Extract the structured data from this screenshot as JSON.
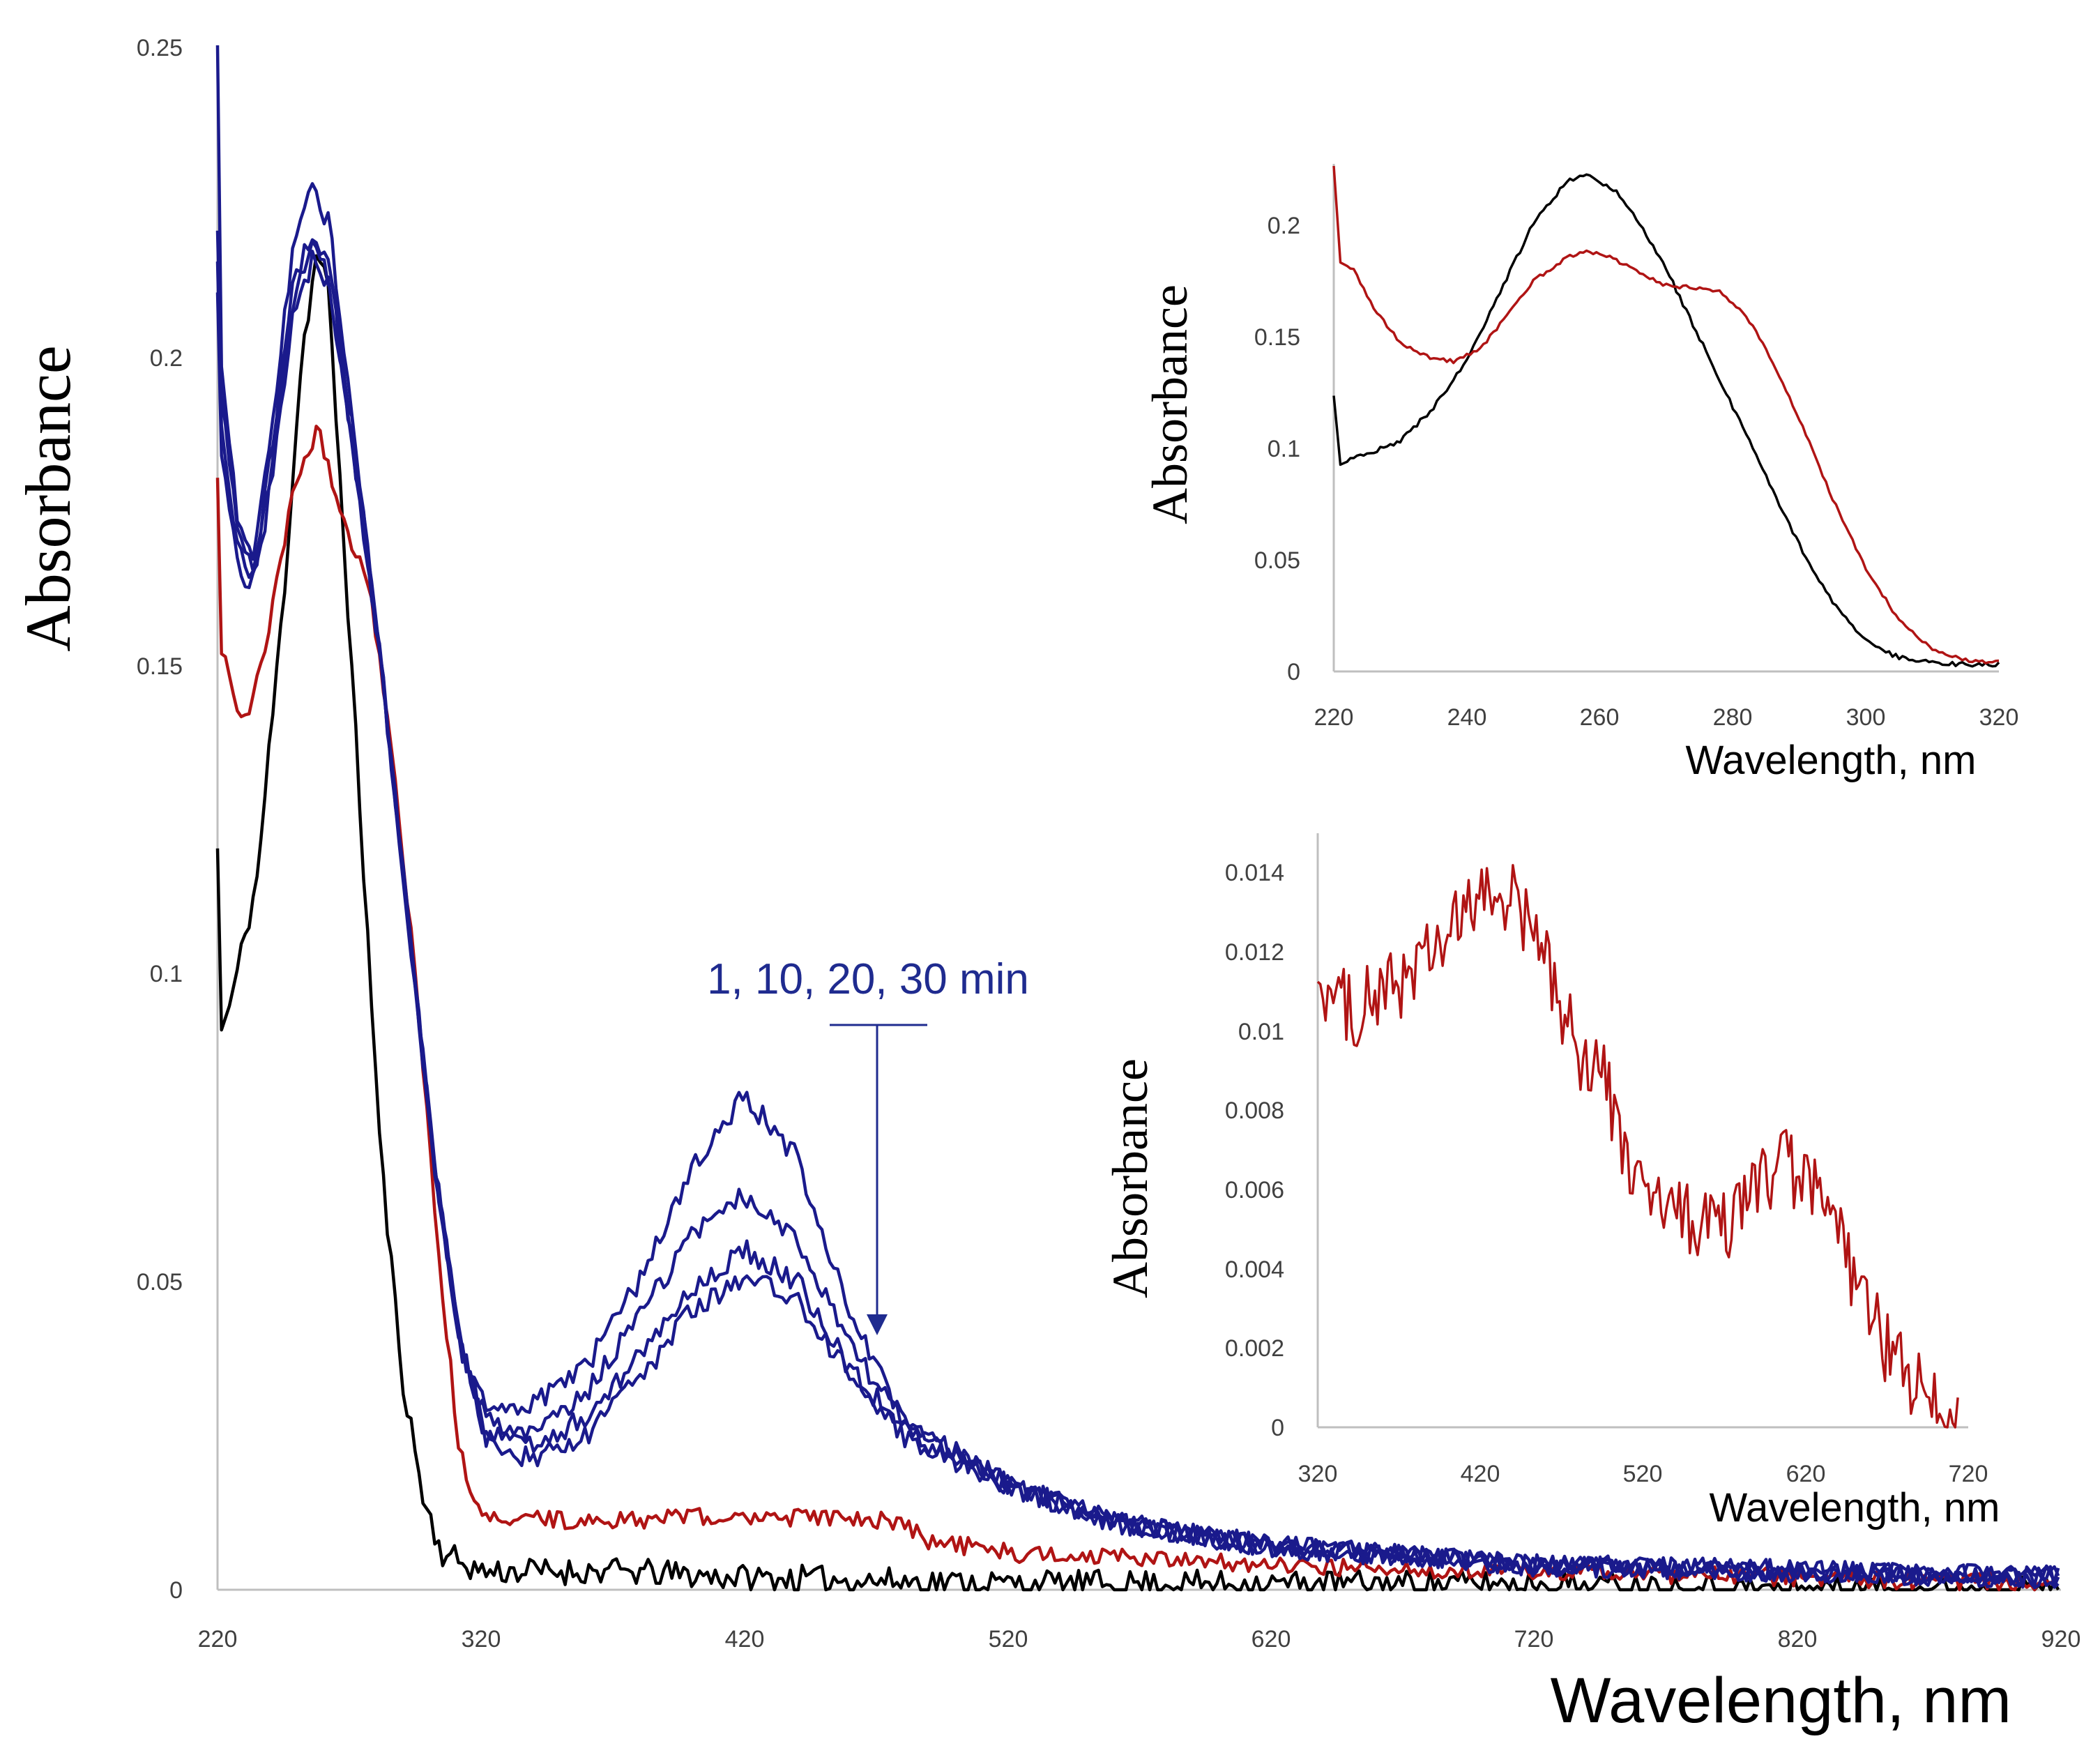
{
  "chart_data": [
    {
      "id": "main",
      "type": "line",
      "title": "",
      "xlabel": "Wavelength, nm",
      "ylabel": "Absorbance",
      "xlim": [
        220,
        920
      ],
      "ylim": [
        0,
        0.25
      ],
      "xticks": [
        "220",
        "320",
        "420",
        "520",
        "620",
        "720",
        "820",
        "920"
      ],
      "yticks": [
        "0",
        "0.05",
        "0.1",
        "0.15",
        "0.2",
        "0.25"
      ],
      "grid": false,
      "annotation": {
        "text": "1, 10, 20, 30 min",
        "arrow_x": 468,
        "arrow_from_y": 0.091,
        "arrow_to_y": 0.041
      },
      "series": [
        {
          "name": "black",
          "color": "#000000",
          "noise": 0.0022,
          "points": [
            [
              220,
              0.12
            ],
            [
              221,
              0.09
            ],
            [
              225,
              0.095
            ],
            [
              235,
              0.115
            ],
            [
              245,
              0.16
            ],
            [
              252,
              0.2
            ],
            [
              258,
              0.217
            ],
            [
              262,
              0.21
            ],
            [
              268,
              0.17
            ],
            [
              275,
              0.12
            ],
            [
              282,
              0.07
            ],
            [
              290,
              0.035
            ],
            [
              298,
              0.015
            ],
            [
              305,
              0.006
            ],
            [
              320,
              0.003
            ],
            [
              370,
              0.003
            ],
            [
              420,
              0.002
            ],
            [
              520,
              0.001
            ],
            [
              620,
              0.001
            ],
            [
              720,
              0.001
            ],
            [
              820,
              0.0
            ],
            [
              920,
              0.0
            ]
          ]
        },
        {
          "name": "red",
          "color": "#b01414",
          "noise": 0.0015,
          "points": [
            [
              220,
              0.18
            ],
            [
              221,
              0.152
            ],
            [
              223,
              0.15
            ],
            [
              230,
              0.14
            ],
            [
              237,
              0.15
            ],
            [
              243,
              0.165
            ],
            [
              250,
              0.18
            ],
            [
              258,
              0.188
            ],
            [
              262,
              0.182
            ],
            [
              270,
              0.17
            ],
            [
              278,
              0.162
            ],
            [
              285,
              0.14
            ],
            [
              295,
              0.1
            ],
            [
              305,
              0.05
            ],
            [
              312,
              0.022
            ],
            [
              320,
              0.012
            ],
            [
              360,
              0.011
            ],
            [
              420,
              0.012
            ],
            [
              480,
              0.011
            ],
            [
              490,
              0.008
            ],
            [
              520,
              0.006
            ],
            [
              620,
              0.004
            ],
            [
              720,
              0.003
            ],
            [
              820,
              0.002
            ],
            [
              920,
              0.001
            ]
          ]
        },
        {
          "name": "1 min",
          "color": "#1a1a8c",
          "noise": 0.0018,
          "points": [
            [
              220,
              0.25
            ],
            [
              221,
              0.2
            ],
            [
              228,
              0.172
            ],
            [
              234,
              0.168
            ],
            [
              240,
              0.185
            ],
            [
              248,
              0.215
            ],
            [
              256,
              0.228
            ],
            [
              263,
              0.22
            ],
            [
              272,
              0.185
            ],
            [
              282,
              0.15
            ],
            [
              292,
              0.11
            ],
            [
              302,
              0.07
            ],
            [
              312,
              0.04
            ],
            [
              322,
              0.03
            ],
            [
              340,
              0.03
            ],
            [
              360,
              0.036
            ],
            [
              380,
              0.05
            ],
            [
              400,
              0.068
            ],
            [
              420,
              0.08
            ],
            [
              440,
              0.07
            ],
            [
              460,
              0.045
            ],
            [
              480,
              0.028
            ],
            [
              520,
              0.017
            ],
            [
              560,
              0.011
            ],
            [
              620,
              0.007
            ],
            [
              720,
              0.004
            ],
            [
              820,
              0.003
            ],
            [
              920,
              0.002
            ]
          ]
        },
        {
          "name": "10 min",
          "color": "#1a1a8c",
          "noise": 0.0018,
          "points": [
            [
              220,
              0.22
            ],
            [
              221,
              0.195
            ],
            [
              228,
              0.17
            ],
            [
              234,
              0.166
            ],
            [
              240,
              0.183
            ],
            [
              248,
              0.21
            ],
            [
              256,
              0.22
            ],
            [
              263,
              0.215
            ],
            [
              272,
              0.185
            ],
            [
              282,
              0.15
            ],
            [
              292,
              0.11
            ],
            [
              302,
              0.07
            ],
            [
              312,
              0.04
            ],
            [
              322,
              0.027
            ],
            [
              340,
              0.025
            ],
            [
              360,
              0.032
            ],
            [
              380,
              0.044
            ],
            [
              400,
              0.057
            ],
            [
              420,
              0.064
            ],
            [
              440,
              0.057
            ],
            [
              460,
              0.04
            ],
            [
              480,
              0.027
            ],
            [
              520,
              0.017
            ],
            [
              560,
              0.011
            ],
            [
              620,
              0.007
            ],
            [
              720,
              0.004
            ],
            [
              820,
              0.003
            ],
            [
              920,
              0.002
            ]
          ]
        },
        {
          "name": "20 min",
          "color": "#1a1a8c",
          "noise": 0.0018,
          "points": [
            [
              220,
              0.215
            ],
            [
              221,
              0.19
            ],
            [
              228,
              0.168
            ],
            [
              234,
              0.164
            ],
            [
              240,
              0.18
            ],
            [
              248,
              0.208
            ],
            [
              256,
              0.218
            ],
            [
              263,
              0.212
            ],
            [
              272,
              0.183
            ],
            [
              282,
              0.15
            ],
            [
              292,
              0.11
            ],
            [
              302,
              0.07
            ],
            [
              312,
              0.04
            ],
            [
              322,
              0.025
            ],
            [
              340,
              0.023
            ],
            [
              360,
              0.028
            ],
            [
              380,
              0.038
            ],
            [
              400,
              0.049
            ],
            [
              420,
              0.055
            ],
            [
              440,
              0.05
            ],
            [
              460,
              0.036
            ],
            [
              480,
              0.026
            ],
            [
              520,
              0.017
            ],
            [
              560,
              0.011
            ],
            [
              620,
              0.007
            ],
            [
              720,
              0.004
            ],
            [
              820,
              0.003
            ],
            [
              920,
              0.002
            ]
          ]
        },
        {
          "name": "30 min",
          "color": "#1a1a8c",
          "noise": 0.0018,
          "points": [
            [
              220,
              0.21
            ],
            [
              221,
              0.185
            ],
            [
              228,
              0.165
            ],
            [
              234,
              0.163
            ],
            [
              240,
              0.178
            ],
            [
              248,
              0.205
            ],
            [
              256,
              0.215
            ],
            [
              263,
              0.21
            ],
            [
              272,
              0.183
            ],
            [
              282,
              0.15
            ],
            [
              292,
              0.11
            ],
            [
              302,
              0.07
            ],
            [
              312,
              0.04
            ],
            [
              322,
              0.024
            ],
            [
              340,
              0.021
            ],
            [
              360,
              0.025
            ],
            [
              380,
              0.034
            ],
            [
              400,
              0.045
            ],
            [
              420,
              0.051
            ],
            [
              440,
              0.047
            ],
            [
              460,
              0.035
            ],
            [
              480,
              0.025
            ],
            [
              520,
              0.017
            ],
            [
              560,
              0.011
            ],
            [
              620,
              0.007
            ],
            [
              720,
              0.004
            ],
            [
              820,
              0.003
            ],
            [
              920,
              0.002
            ]
          ]
        }
      ]
    },
    {
      "id": "inset-top",
      "type": "line",
      "title": "",
      "xlabel": "Wavelength, nm",
      "ylabel": "Absorbance",
      "xlim": [
        220,
        320
      ],
      "ylim": [
        0,
        0.22
      ],
      "xticks": [
        "220",
        "240",
        "260",
        "280",
        "300",
        "320"
      ],
      "yticks": [
        "0",
        "0.05",
        "0.1",
        "0.15",
        "0.2"
      ],
      "grid": false,
      "series": [
        {
          "name": "black",
          "color": "#000000",
          "noise": 0.001,
          "points": [
            [
              220,
              0.12
            ],
            [
              221,
              0.09
            ],
            [
              225,
              0.095
            ],
            [
              230,
              0.1
            ],
            [
              235,
              0.115
            ],
            [
              240,
              0.135
            ],
            [
              245,
              0.165
            ],
            [
              250,
              0.195
            ],
            [
              255,
              0.213
            ],
            [
              258,
              0.216
            ],
            [
              262,
              0.21
            ],
            [
              265,
              0.2
            ],
            [
              270,
              0.175
            ],
            [
              275,
              0.145
            ],
            [
              280,
              0.115
            ],
            [
              285,
              0.085
            ],
            [
              290,
              0.055
            ],
            [
              295,
              0.03
            ],
            [
              300,
              0.013
            ],
            [
              305,
              0.006
            ],
            [
              310,
              0.004
            ],
            [
              315,
              0.003
            ],
            [
              320,
              0.003
            ]
          ]
        },
        {
          "name": "red",
          "color": "#b01414",
          "noise": 0.0008,
          "points": [
            [
              220,
              0.22
            ],
            [
              221,
              0.178
            ],
            [
              223,
              0.175
            ],
            [
              226,
              0.158
            ],
            [
              230,
              0.143
            ],
            [
              234,
              0.137
            ],
            [
              238,
              0.135
            ],
            [
              242,
              0.14
            ],
            [
              246,
              0.155
            ],
            [
              250,
              0.17
            ],
            [
              255,
              0.18
            ],
            [
              258,
              0.183
            ],
            [
              262,
              0.18
            ],
            [
              266,
              0.173
            ],
            [
              270,
              0.168
            ],
            [
              274,
              0.167
            ],
            [
              278,
              0.165
            ],
            [
              282,
              0.155
            ],
            [
              286,
              0.135
            ],
            [
              290,
              0.11
            ],
            [
              295,
              0.075
            ],
            [
              300,
              0.045
            ],
            [
              305,
              0.022
            ],
            [
              310,
              0.01
            ],
            [
              315,
              0.005
            ],
            [
              320,
              0.004
            ]
          ]
        }
      ]
    },
    {
      "id": "inset-bottom",
      "type": "line",
      "title": "",
      "xlabel": "Wavelength, nm",
      "ylabel": "Absorbance",
      "xlim": [
        320,
        720
      ],
      "ylim": [
        0,
        0.014
      ],
      "xticks": [
        "320",
        "420",
        "520",
        "620",
        "720"
      ],
      "yticks": [
        "0",
        "0.002",
        "0.004",
        "0.006",
        "0.008",
        "0.01",
        "0.012",
        "0.014"
      ],
      "grid": false,
      "series": [
        {
          "name": "red",
          "color": "#b01414",
          "noise": 0.0009,
          "points": [
            [
              320,
              0.0105
            ],
            [
              340,
              0.0098
            ],
            [
              360,
              0.0102
            ],
            [
              380,
              0.0108
            ],
            [
              400,
              0.0115
            ],
            [
              420,
              0.0125
            ],
            [
              440,
              0.0125
            ],
            [
              460,
              0.011
            ],
            [
              480,
              0.0088
            ],
            [
              495,
              0.0085
            ],
            [
              505,
              0.0068
            ],
            [
              520,
              0.0055
            ],
            [
              540,
              0.005
            ],
            [
              560,
              0.0047
            ],
            [
              575,
              0.0048
            ],
            [
              590,
              0.0058
            ],
            [
              605,
              0.0062
            ],
            [
              620,
              0.0058
            ],
            [
              640,
              0.0045
            ],
            [
              660,
              0.0025
            ],
            [
              680,
              0.0013
            ],
            [
              700,
              0.0004
            ],
            [
              715,
              0.0002
            ]
          ]
        }
      ]
    }
  ]
}
